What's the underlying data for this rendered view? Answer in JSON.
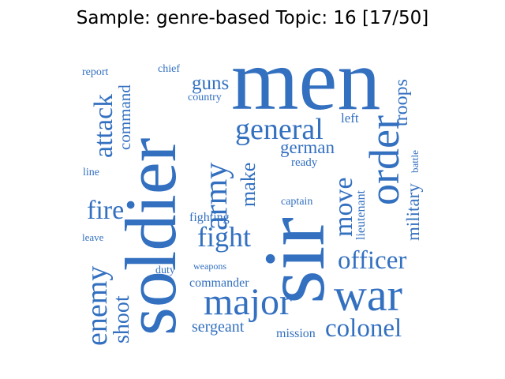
{
  "title": "Sample: genre-based Topic: 16 [17/50]",
  "color": "#3370c0",
  "words": [
    {
      "text": "men"
    },
    {
      "text": "soldier"
    },
    {
      "text": "sir"
    },
    {
      "text": "war"
    },
    {
      "text": "major"
    },
    {
      "text": "general"
    },
    {
      "text": "order"
    },
    {
      "text": "officer"
    },
    {
      "text": "army"
    },
    {
      "text": "fight"
    },
    {
      "text": "colonel"
    },
    {
      "text": "enemy"
    },
    {
      "text": "attack"
    },
    {
      "text": "shoot"
    },
    {
      "text": "fire"
    },
    {
      "text": "move"
    },
    {
      "text": "troops"
    },
    {
      "text": "military"
    },
    {
      "text": "make"
    },
    {
      "text": "german"
    },
    {
      "text": "sergeant"
    },
    {
      "text": "guns"
    },
    {
      "text": "command"
    },
    {
      "text": "commander"
    },
    {
      "text": "fighting"
    },
    {
      "text": "mission"
    },
    {
      "text": "lieutenant"
    },
    {
      "text": "left"
    },
    {
      "text": "captain"
    },
    {
      "text": "ready"
    },
    {
      "text": "country"
    },
    {
      "text": "report"
    },
    {
      "text": "chief"
    },
    {
      "text": "battle"
    },
    {
      "text": "line"
    },
    {
      "text": "leave"
    },
    {
      "text": "duty"
    },
    {
      "text": "weapons"
    }
  ]
}
